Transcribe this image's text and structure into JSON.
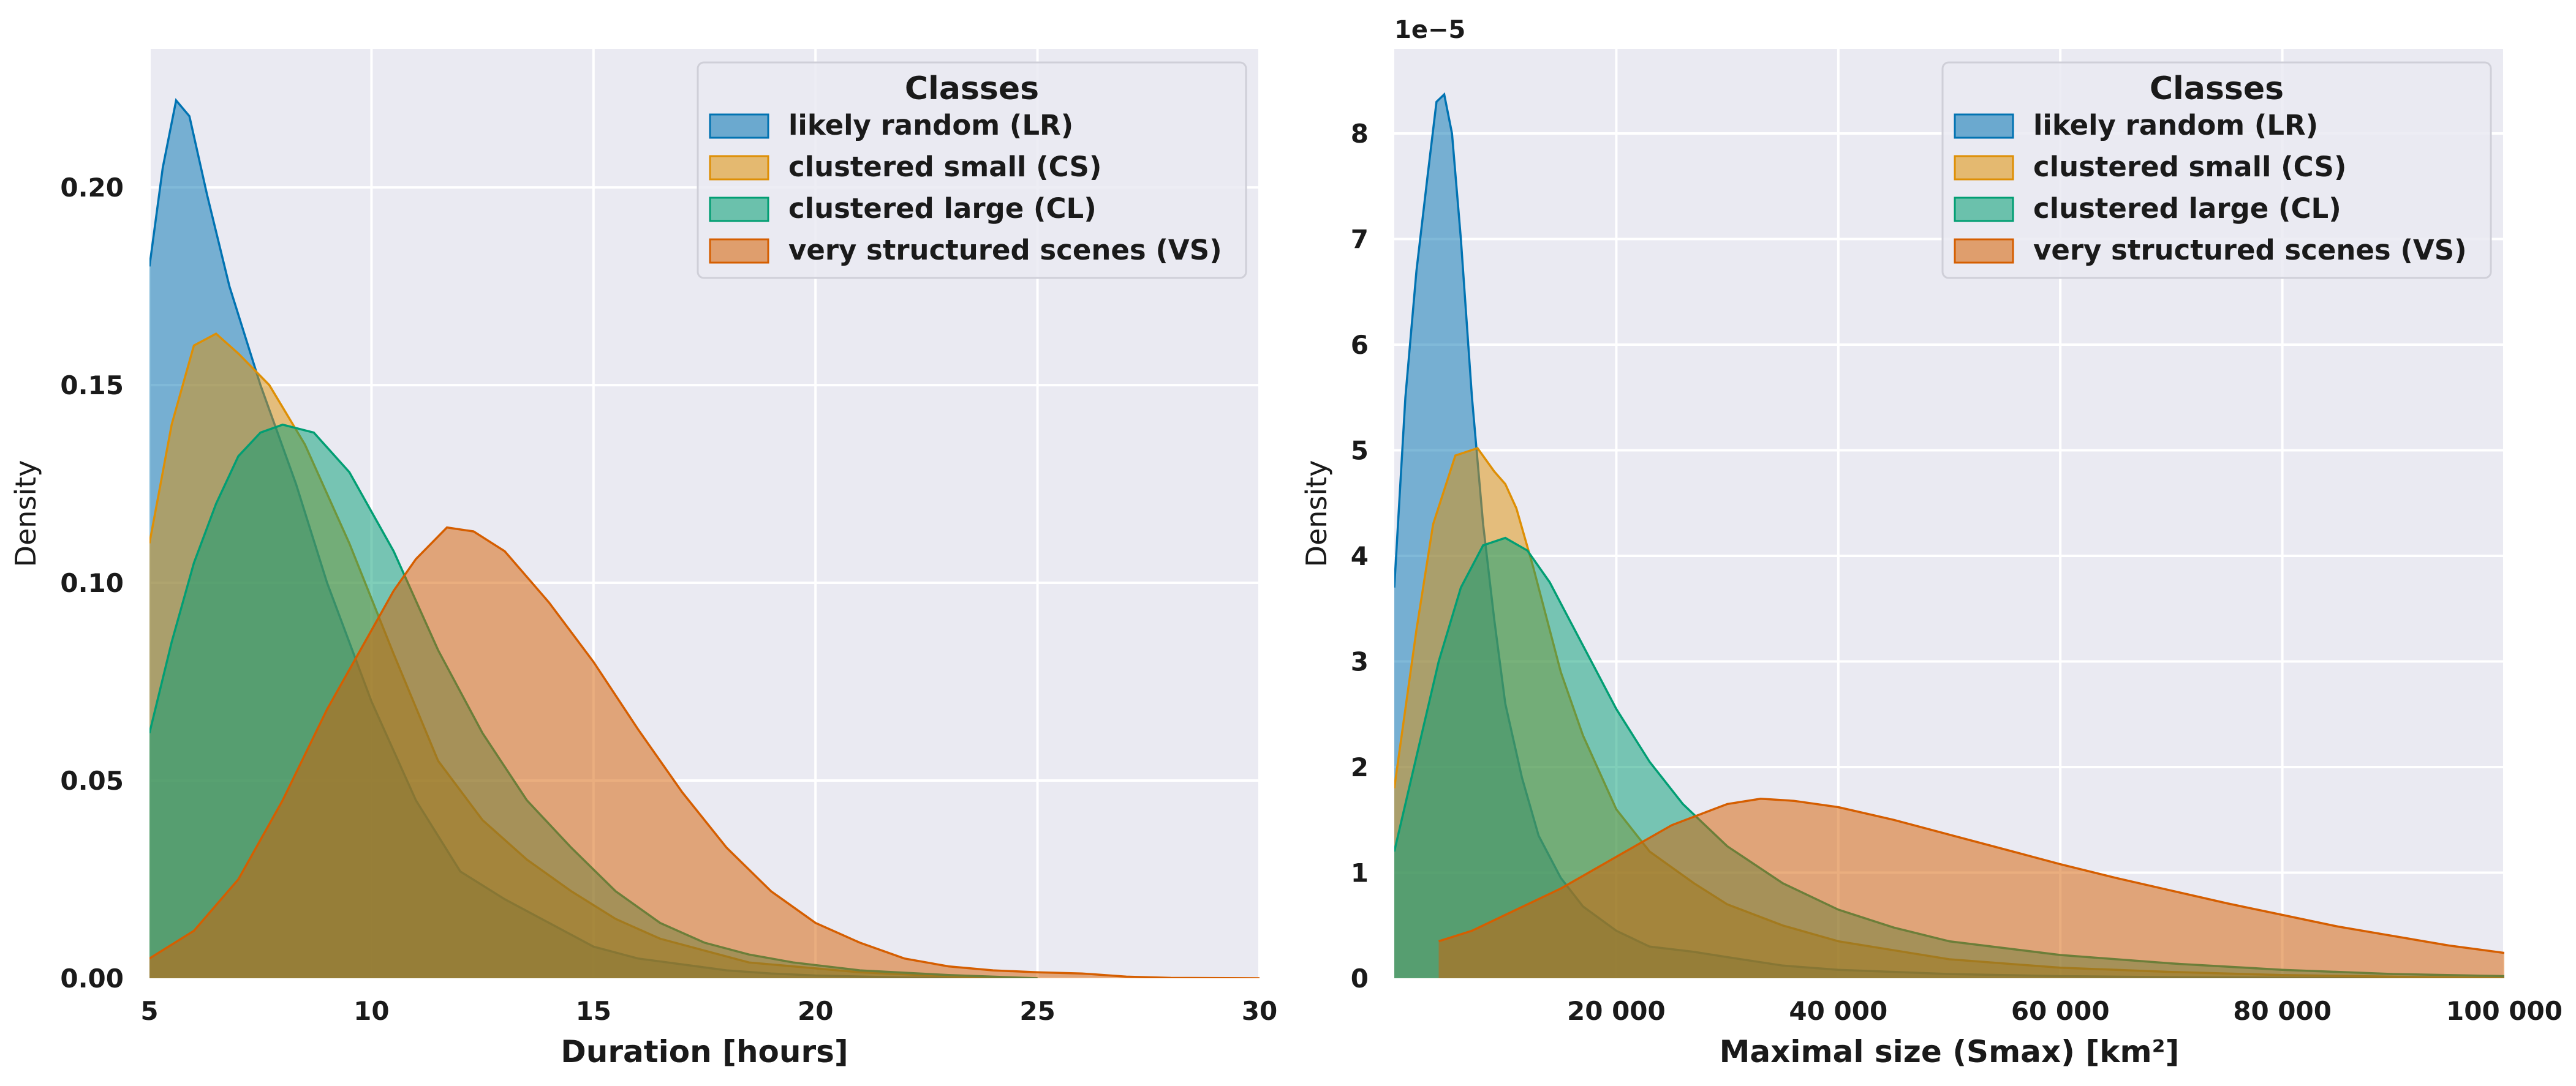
{
  "chart_data": [
    {
      "type": "area",
      "xlabel": "Duration [hours]",
      "ylabel": "Density",
      "xlim": [
        5,
        30
      ],
      "ylim": [
        0,
        0.235
      ],
      "x_ticks": [
        5,
        10,
        15,
        20,
        25,
        30
      ],
      "x_tick_labels": [
        "5",
        "10",
        "15",
        "20",
        "25",
        "30"
      ],
      "y_ticks": [
        0,
        0.05,
        0.1,
        0.15,
        0.2
      ],
      "y_tick_labels": [
        "0.00",
        "0.05",
        "0.10",
        "0.15",
        "0.20"
      ],
      "grid": true,
      "legend": {
        "title": "Classes",
        "placement": "top-right"
      },
      "series": [
        {
          "name": "likely random (LR)",
          "color": "#0173b2",
          "points": [
            [
              5,
              0.18
            ],
            [
              5.3,
              0.205
            ],
            [
              5.6,
              0.222
            ],
            [
              5.9,
              0.218
            ],
            [
              6.3,
              0.198
            ],
            [
              6.8,
              0.175
            ],
            [
              7.5,
              0.15
            ],
            [
              8.3,
              0.125
            ],
            [
              9.0,
              0.1
            ],
            [
              10.0,
              0.07
            ],
            [
              11.0,
              0.045
            ],
            [
              12.0,
              0.027
            ],
            [
              13.0,
              0.02
            ],
            [
              14.0,
              0.014
            ],
            [
              15.0,
              0.008
            ],
            [
              16.0,
              0.005
            ],
            [
              17.0,
              0.0035
            ],
            [
              18.0,
              0.002
            ],
            [
              19.0,
              0.0012
            ],
            [
              20.0,
              0.0007
            ],
            [
              22.0,
              0.0002
            ],
            [
              24.0,
              0
            ]
          ]
        },
        {
          "name": "clustered small (CS)",
          "color": "#de8f05",
          "points": [
            [
              5,
              0.11
            ],
            [
              5.5,
              0.14
            ],
            [
              6.0,
              0.16
            ],
            [
              6.5,
              0.163
            ],
            [
              7.0,
              0.158
            ],
            [
              7.7,
              0.15
            ],
            [
              8.5,
              0.135
            ],
            [
              9.5,
              0.11
            ],
            [
              10.5,
              0.082
            ],
            [
              11.5,
              0.055
            ],
            [
              12.5,
              0.04
            ],
            [
              13.5,
              0.03
            ],
            [
              14.5,
              0.022
            ],
            [
              15.5,
              0.015
            ],
            [
              16.5,
              0.01
            ],
            [
              17.5,
              0.007
            ],
            [
              18.5,
              0.004
            ],
            [
              19.5,
              0.003
            ],
            [
              21.0,
              0.0015
            ],
            [
              23.0,
              0.0005
            ],
            [
              25.0,
              0
            ]
          ]
        },
        {
          "name": "clustered large (CL)",
          "color": "#029e73",
          "points": [
            [
              5,
              0.062
            ],
            [
              5.5,
              0.085
            ],
            [
              6.0,
              0.105
            ],
            [
              6.5,
              0.12
            ],
            [
              7.0,
              0.132
            ],
            [
              7.5,
              0.138
            ],
            [
              8.0,
              0.14
            ],
            [
              8.7,
              0.138
            ],
            [
              9.5,
              0.128
            ],
            [
              10.5,
              0.108
            ],
            [
              11.5,
              0.083
            ],
            [
              12.5,
              0.062
            ],
            [
              13.5,
              0.045
            ],
            [
              14.5,
              0.033
            ],
            [
              15.5,
              0.022
            ],
            [
              16.5,
              0.014
            ],
            [
              17.5,
              0.009
            ],
            [
              18.5,
              0.006
            ],
            [
              19.5,
              0.004
            ],
            [
              21.0,
              0.002
            ],
            [
              23.0,
              0.0008
            ],
            [
              25.0,
              0
            ]
          ]
        },
        {
          "name": "very structured scenes (VS)",
          "color": "#d55e00",
          "points": [
            [
              5,
              0.005
            ],
            [
              6.0,
              0.012
            ],
            [
              7.0,
              0.025
            ],
            [
              8.0,
              0.045
            ],
            [
              9.0,
              0.068
            ],
            [
              10.0,
              0.088
            ],
            [
              10.5,
              0.098
            ],
            [
              11.0,
              0.106
            ],
            [
              11.7,
              0.114
            ],
            [
              12.3,
              0.113
            ],
            [
              13.0,
              0.108
            ],
            [
              14.0,
              0.095
            ],
            [
              15.0,
              0.08
            ],
            [
              16.0,
              0.063
            ],
            [
              17.0,
              0.047
            ],
            [
              18.0,
              0.033
            ],
            [
              19.0,
              0.022
            ],
            [
              20.0,
              0.014
            ],
            [
              21.0,
              0.009
            ],
            [
              22.0,
              0.005
            ],
            [
              23.0,
              0.003
            ],
            [
              24.0,
              0.002
            ],
            [
              25.0,
              0.0015
            ],
            [
              26.0,
              0.0012
            ],
            [
              27.0,
              0.0004
            ],
            [
              28.0,
              0.0001
            ],
            [
              30.0,
              0
            ]
          ]
        }
      ]
    },
    {
      "type": "area",
      "xlabel": "Maximal size (Smax) [km²]",
      "ylabel": "Density",
      "y_offset_label": "1e−5",
      "xlim": [
        0,
        100000
      ],
      "ylim": [
        0,
        8.8
      ],
      "x_ticks": [
        20000,
        40000,
        60000,
        80000,
        100000
      ],
      "x_tick_labels": [
        "20 000",
        "40 000",
        "60 000",
        "80 000",
        "100 000"
      ],
      "y_ticks": [
        0,
        1,
        2,
        3,
        4,
        5,
        6,
        7,
        8
      ],
      "y_tick_labels": [
        "0",
        "1",
        "2",
        "3",
        "4",
        "5",
        "6",
        "7",
        "8"
      ],
      "grid": true,
      "legend": {
        "title": "Classes",
        "placement": "top-right"
      },
      "series": [
        {
          "name": "likely random (LR)",
          "color": "#0173b2",
          "points": [
            [
              0,
              3.7
            ],
            [
              1000,
              5.5
            ],
            [
              2000,
              6.7
            ],
            [
              3000,
              7.6
            ],
            [
              3800,
              8.3
            ],
            [
              4500,
              8.37
            ],
            [
              5200,
              8.0
            ],
            [
              6000,
              7.0
            ],
            [
              7000,
              5.5
            ],
            [
              8000,
              4.3
            ],
            [
              9000,
              3.4
            ],
            [
              10000,
              2.6
            ],
            [
              11500,
              1.9
            ],
            [
              13000,
              1.35
            ],
            [
              15000,
              0.95
            ],
            [
              17000,
              0.68
            ],
            [
              20000,
              0.45
            ],
            [
              23000,
              0.3
            ],
            [
              27000,
              0.25
            ],
            [
              30000,
              0.2
            ],
            [
              35000,
              0.12
            ],
            [
              40000,
              0.08
            ],
            [
              50000,
              0.04
            ],
            [
              60000,
              0.02
            ],
            [
              70000,
              0.01
            ],
            [
              85000,
              0.003
            ],
            [
              100000,
              0
            ]
          ]
        },
        {
          "name": "clustered small (CS)",
          "color": "#de8f05",
          "points": [
            [
              0,
              1.8
            ],
            [
              2000,
              3.3
            ],
            [
              3500,
              4.3
            ],
            [
              5500,
              4.95
            ],
            [
              7500,
              5.02
            ],
            [
              9000,
              4.8
            ],
            [
              10000,
              4.68
            ],
            [
              11000,
              4.45
            ],
            [
              12500,
              3.9
            ],
            [
              15000,
              2.9
            ],
            [
              17000,
              2.3
            ],
            [
              20000,
              1.6
            ],
            [
              23000,
              1.2
            ],
            [
              27000,
              0.9
            ],
            [
              30000,
              0.7
            ],
            [
              35000,
              0.5
            ],
            [
              40000,
              0.35
            ],
            [
              50000,
              0.18
            ],
            [
              60000,
              0.1
            ],
            [
              70000,
              0.06
            ],
            [
              80000,
              0.03
            ],
            [
              100000,
              0
            ]
          ]
        },
        {
          "name": "clustered large (CL)",
          "color": "#029e73",
          "points": [
            [
              0,
              1.2
            ],
            [
              2000,
              2.1
            ],
            [
              4000,
              3.0
            ],
            [
              6000,
              3.7
            ],
            [
              8000,
              4.1
            ],
            [
              10000,
              4.17
            ],
            [
              12000,
              4.05
            ],
            [
              14000,
              3.75
            ],
            [
              16000,
              3.35
            ],
            [
              18000,
              2.95
            ],
            [
              20000,
              2.55
            ],
            [
              23000,
              2.05
            ],
            [
              26000,
              1.65
            ],
            [
              30000,
              1.25
            ],
            [
              35000,
              0.9
            ],
            [
              40000,
              0.65
            ],
            [
              45000,
              0.48
            ],
            [
              50000,
              0.35
            ],
            [
              60000,
              0.22
            ],
            [
              70000,
              0.14
            ],
            [
              80000,
              0.08
            ],
            [
              90000,
              0.04
            ],
            [
              100000,
              0.02
            ]
          ]
        },
        {
          "name": "very structured scenes (VS)",
          "color": "#d55e00",
          "points": [
            [
              4000,
              0.35
            ],
            [
              7000,
              0.45
            ],
            [
              10000,
              0.6
            ],
            [
              15000,
              0.85
            ],
            [
              20000,
              1.15
            ],
            [
              25000,
              1.45
            ],
            [
              30000,
              1.65
            ],
            [
              33000,
              1.7
            ],
            [
              36000,
              1.68
            ],
            [
              40000,
              1.62
            ],
            [
              45000,
              1.5
            ],
            [
              50000,
              1.36
            ],
            [
              55000,
              1.22
            ],
            [
              60000,
              1.08
            ],
            [
              65000,
              0.95
            ],
            [
              70000,
              0.83
            ],
            [
              75000,
              0.71
            ],
            [
              80000,
              0.6
            ],
            [
              85000,
              0.49
            ],
            [
              90000,
              0.4
            ],
            [
              95000,
              0.31
            ],
            [
              100000,
              0.24
            ]
          ]
        }
      ]
    }
  ]
}
